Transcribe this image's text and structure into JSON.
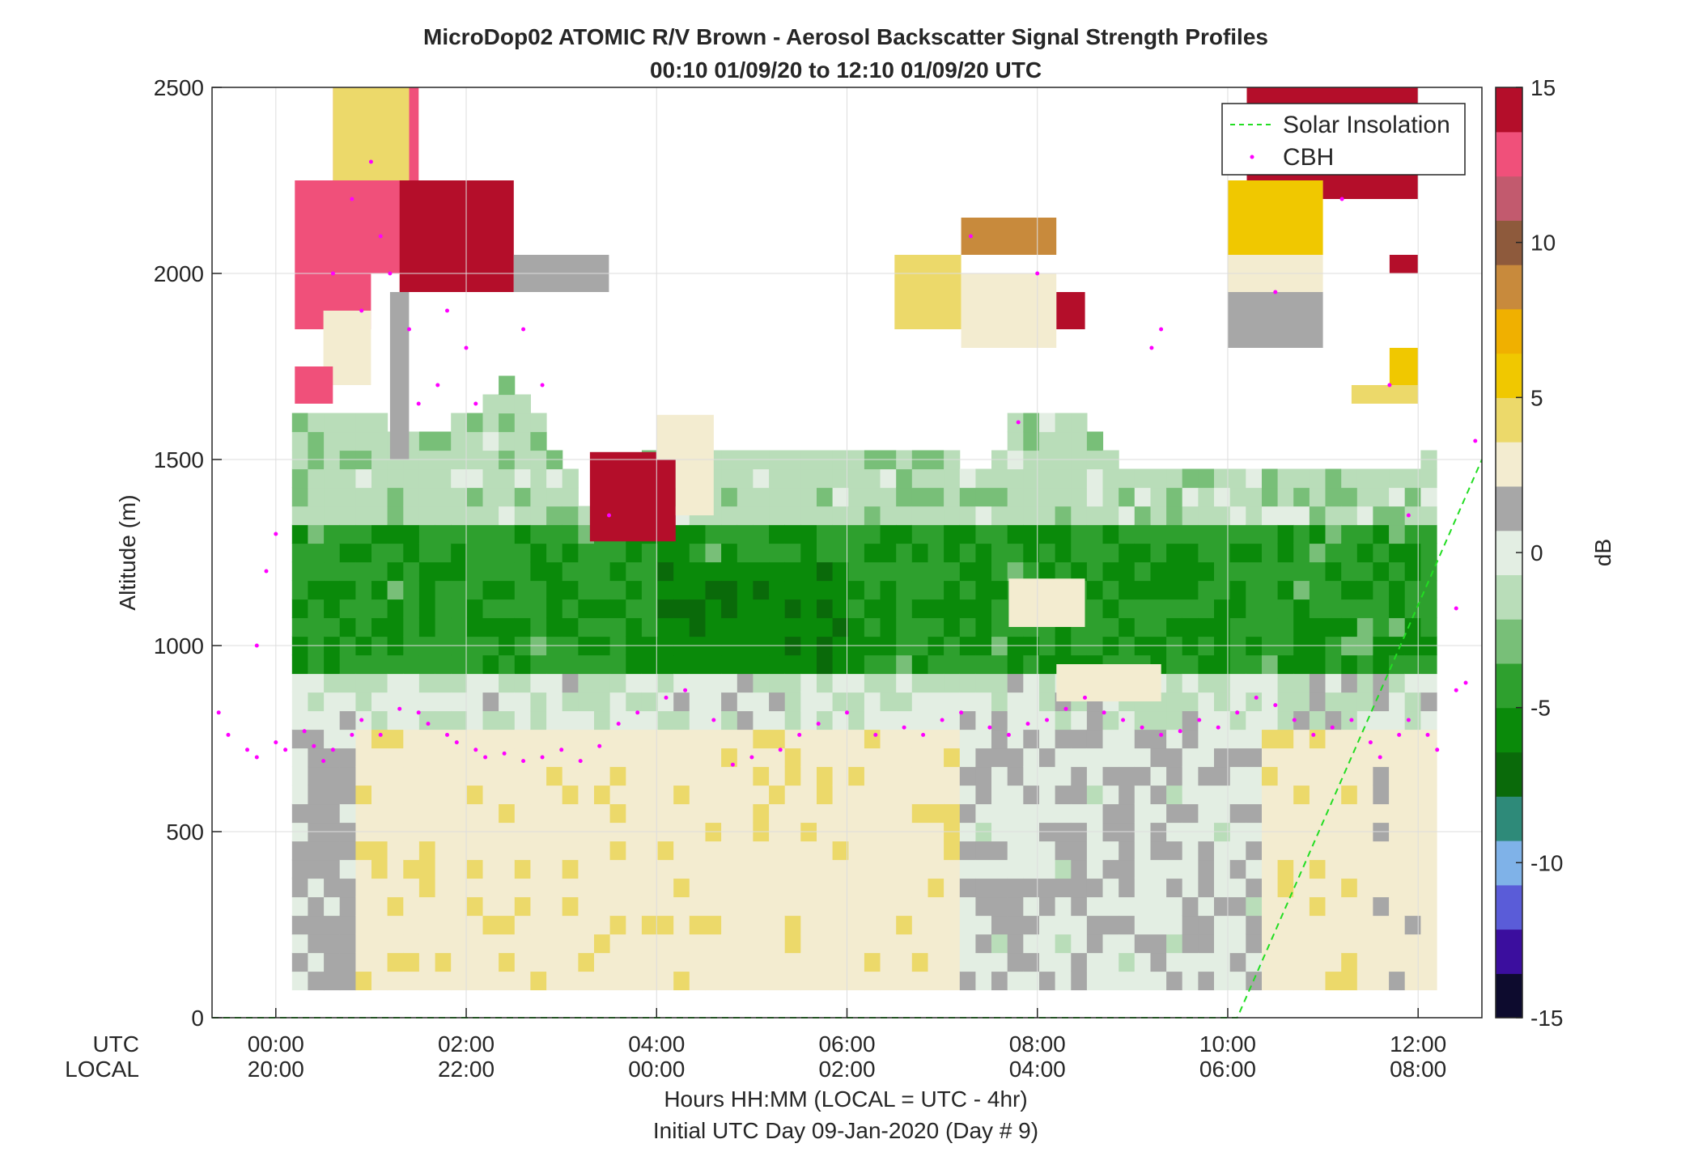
{
  "chart_data": {
    "type": "heatmap",
    "title": "MicroDop02 ATOMIC R/V Brown - Aerosol Backscatter Signal Strength Profiles",
    "subtitle": "00:10 01/09/20 to 12:10 01/09/20  UTC",
    "ylabel": "Altitude (m)",
    "xlabel": "Hours HH:MM  (LOCAL = UTC - 4hr)",
    "xlabel2": "Initial UTC Day 09-Jan-2020 (Day # 9)",
    "x_row_labels": [
      "UTC",
      "LOCAL"
    ],
    "xlim_hours": [
      -0.67,
      12.67
    ],
    "ylim": [
      0,
      2500
    ],
    "grid": true,
    "x_ticks": [
      {
        "h": 0,
        "utc": "00:00",
        "local": "20:00"
      },
      {
        "h": 2,
        "utc": "02:00",
        "local": "22:00"
      },
      {
        "h": 4,
        "utc": "04:00",
        "local": "00:00"
      },
      {
        "h": 6,
        "utc": "06:00",
        "local": "02:00"
      },
      {
        "h": 8,
        "utc": "08:00",
        "local": "04:00"
      },
      {
        "h": 10,
        "utc": "10:00",
        "local": "06:00"
      },
      {
        "h": 12,
        "utc": "12:00",
        "local": "08:00"
      }
    ],
    "y_ticks": [
      0,
      500,
      1000,
      1500,
      2000,
      2500
    ],
    "colorbar": {
      "label": "dB",
      "range": [
        -15,
        15
      ],
      "ticks": [
        15,
        10,
        5,
        0,
        -5,
        -10,
        -15
      ],
      "colors": [
        "#0d0b2e",
        "#3b0e9e",
        "#5a5cd8",
        "#7fb2e8",
        "#2e8a79",
        "#0a6a0a",
        "#0a8a0a",
        "#2ea02e",
        "#78bf78",
        "#b9ddb9",
        "#e3eee3",
        "#a7a7a7",
        "#f3ecd0",
        "#ecd96a",
        "#f0c800",
        "#f0b000",
        "#c88a3c",
        "#8e5a3c",
        "#c25a6e",
        "#f0507a",
        "#b40e2a"
      ]
    },
    "legend": {
      "placement": "top-right",
      "entries": [
        {
          "name": "Solar Insolation",
          "style": "dashed",
          "color": "#22dd22"
        },
        {
          "name": "CBH",
          "style": "dots",
          "color": "#ff00ff"
        }
      ]
    },
    "series": [
      {
        "name": "Solar Insolation",
        "x_hours": [
          -0.67,
          10.1,
          12.67
        ],
        "y": [
          0,
          0,
          1500
        ]
      },
      {
        "name": "CBH",
        "x_hours": [
          -0.6,
          -0.5,
          -0.3,
          -0.2,
          0.0,
          0.1,
          0.3,
          0.4,
          0.5,
          0.6,
          0.8,
          0.9,
          1.1,
          1.3,
          1.5,
          1.6,
          1.8,
          1.9,
          2.1,
          2.2,
          2.4,
          2.6,
          2.8,
          3.0,
          3.2,
          3.4,
          3.6,
          3.8,
          4.1,
          4.3,
          4.6,
          4.8,
          5.0,
          5.3,
          5.5,
          5.7,
          6.0,
          6.3,
          6.6,
          6.8,
          7.0,
          7.2,
          7.5,
          7.7,
          7.9,
          8.1,
          8.3,
          8.5,
          8.7,
          8.9,
          9.1,
          9.3,
          9.5,
          9.7,
          9.9,
          10.1,
          10.3,
          10.5,
          10.7,
          10.9,
          11.1,
          11.3,
          11.5,
          11.6,
          11.8,
          11.9,
          12.1,
          12.2,
          12.4,
          12.5,
          -0.2,
          -0.1,
          0.0,
          0.6,
          0.8,
          0.9,
          1.0,
          1.1,
          1.2,
          1.4,
          1.5,
          1.7,
          1.8,
          2.0,
          2.1,
          2.6,
          2.8,
          3.5,
          7.3,
          7.8,
          8.0,
          9.2,
          9.3,
          10.5,
          11.2,
          11.7,
          11.9,
          12.4,
          12.6
        ],
        "y": [
          820,
          760,
          720,
          700,
          740,
          720,
          770,
          730,
          690,
          720,
          760,
          800,
          760,
          830,
          820,
          790,
          760,
          740,
          720,
          700,
          710,
          690,
          700,
          720,
          690,
          730,
          790,
          820,
          860,
          880,
          800,
          680,
          700,
          720,
          760,
          790,
          820,
          760,
          780,
          760,
          800,
          820,
          780,
          760,
          790,
          800,
          830,
          860,
          820,
          800,
          780,
          760,
          770,
          800,
          780,
          820,
          860,
          840,
          800,
          760,
          780,
          800,
          740,
          700,
          760,
          800,
          760,
          720,
          880,
          900,
          1000,
          1200,
          1300,
          2000,
          2200,
          1900,
          2300,
          2100,
          2000,
          1850,
          1650,
          1700,
          1900,
          1800,
          1650,
          1850,
          1700,
          1350,
          2100,
          1600,
          2000,
          1800,
          1850,
          1950,
          2200,
          1700,
          1350,
          1100,
          1550
        ]
      }
    ]
  }
}
